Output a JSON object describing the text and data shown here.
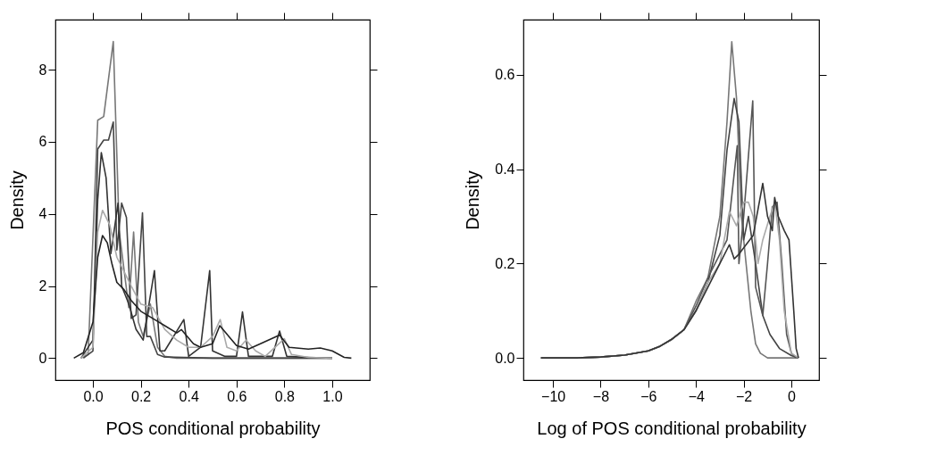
{
  "chart_data": [
    {
      "type": "line",
      "xlabel": "POS conditional probability",
      "ylabel": "Density",
      "xlim": [
        -0.157,
        1.157
      ],
      "ylim": [
        -0.61,
        9.39
      ],
      "xticks": [
        {
          "value": 0,
          "label": "0.0"
        },
        {
          "value": 0.2,
          "label": "0.2"
        },
        {
          "value": 0.4,
          "label": "0.4"
        },
        {
          "value": 0.6,
          "label": "0.6"
        },
        {
          "value": 0.8,
          "label": "0.8"
        },
        {
          "value": 1,
          "label": "1.0"
        }
      ],
      "yticks": [
        0,
        2,
        4,
        6,
        8
      ],
      "grid": false,
      "series": [
        {
          "color": "#777777",
          "x": [
            -0.05,
            -0.02,
            0.02,
            0.045,
            0.085,
            0.11,
            0.15,
            0.17,
            0.19,
            0.21,
            0.24,
            0.27,
            0.3,
            0.35,
            0.4,
            0.5,
            0.6,
            0.7,
            0.8,
            0.9,
            1.0
          ],
          "values": [
            0,
            0.1,
            6.6,
            6.7,
            8.78,
            3.5,
            1.4,
            3.5,
            1.0,
            0.6,
            1.5,
            0.3,
            0.05,
            0,
            0,
            0,
            0,
            0,
            0,
            0,
            0
          ]
        },
        {
          "color": "#444444",
          "x": [
            -0.04,
            0.0,
            0.02,
            0.045,
            0.065,
            0.085,
            0.1,
            0.12,
            0.14,
            0.16,
            0.18,
            0.207,
            0.225,
            0.24,
            0.27,
            0.3,
            0.5,
            0.8,
            1.0
          ],
          "values": [
            0,
            0.2,
            5.8,
            6.05,
            6.05,
            6.55,
            3.0,
            4.3,
            3.9,
            1.1,
            1.2,
            4.03,
            0.6,
            0.6,
            0.1,
            0.03,
            0,
            0,
            0
          ]
        },
        {
          "color": "#333333",
          "x": [
            -0.05,
            0.0,
            0.02,
            0.035,
            0.055,
            0.075,
            0.105,
            0.12,
            0.15,
            0.18,
            0.21,
            0.257,
            0.28,
            0.3,
            0.38,
            0.4,
            0.45,
            0.488,
            0.5,
            0.55,
            0.6,
            0.625,
            0.65,
            0.75,
            0.78,
            0.81,
            0.9,
            1.0
          ],
          "values": [
            0,
            0.5,
            4.4,
            5.7,
            5.0,
            2.9,
            4.3,
            2.0,
            1.5,
            0.8,
            0.5,
            2.43,
            0.2,
            0.2,
            1.07,
            0.05,
            0.3,
            2.43,
            0.2,
            0.05,
            0.05,
            1.28,
            0.05,
            0.05,
            0.75,
            0.05,
            0.02,
            0
          ]
        },
        {
          "color": "#aaaaaa",
          "x": [
            -0.05,
            0.0,
            0.02,
            0.04,
            0.07,
            0.1,
            0.13,
            0.16,
            0.2,
            0.25,
            0.3,
            0.35,
            0.4,
            0.45,
            0.5,
            0.532,
            0.56,
            0.6,
            0.64,
            0.68,
            0.72,
            0.8,
            0.83,
            0.9,
            1.0
          ],
          "values": [
            0,
            0.3,
            3.5,
            4.1,
            3.7,
            2.8,
            2.4,
            2.0,
            1.5,
            1.4,
            0.8,
            0.5,
            0.3,
            0.3,
            0.6,
            1.07,
            0.3,
            0.2,
            0.5,
            0.2,
            0.05,
            0.54,
            0.1,
            0.02,
            0
          ]
        },
        {
          "color": "#222222",
          "x": [
            -0.08,
            -0.04,
            0.0,
            0.02,
            0.04,
            0.06,
            0.08,
            0.1,
            0.13,
            0.16,
            0.2,
            0.25,
            0.3,
            0.35,
            0.37,
            0.42,
            0.45,
            0.5,
            0.53,
            0.6,
            0.65,
            0.7,
            0.78,
            0.82,
            0.9,
            0.95,
            1.0,
            1.05,
            1.08
          ],
          "values": [
            0,
            0.15,
            1.0,
            2.8,
            3.4,
            3.2,
            2.6,
            2.1,
            1.9,
            1.6,
            1.3,
            1.1,
            0.9,
            0.7,
            0.79,
            0.4,
            0.3,
            0.4,
            0.9,
            0.35,
            0.25,
            0.4,
            0.64,
            0.3,
            0.25,
            0.28,
            0.2,
            0.02,
            0
          ]
        }
      ]
    },
    {
      "type": "line",
      "xlabel": "Log of POS conditional probability",
      "ylabel": "Density",
      "xlim": [
        -11.24,
        1.16
      ],
      "ylim": [
        -0.047,
        0.717
      ],
      "xticks": [
        {
          "value": -10,
          "label": "−10"
        },
        {
          "value": -8,
          "label": "−8"
        },
        {
          "value": -6,
          "label": "−6"
        },
        {
          "value": -4,
          "label": "−4"
        },
        {
          "value": -2,
          "label": "−2"
        },
        0
      ],
      "yticks": [
        {
          "value": 0,
          "label": "0.0"
        },
        {
          "value": 0.2,
          "label": "0.2"
        },
        {
          "value": 0.4,
          "label": "0.4"
        },
        {
          "value": 0.6,
          "label": "0.6"
        }
      ],
      "grid": false,
      "series": [
        {
          "color": "#777777",
          "x": [
            -10.5,
            -9,
            -8,
            -7,
            -6,
            -5.5,
            -5,
            -4.5,
            -4,
            -3.5,
            -3,
            -2.7,
            -2.5,
            -2.3,
            -2.1,
            -1.9,
            -1.7,
            -1.5,
            -1.3,
            -1,
            0,
            0.3
          ],
          "values": [
            0,
            0,
            0.002,
            0.006,
            0.015,
            0.025,
            0.04,
            0.06,
            0.12,
            0.17,
            0.3,
            0.5,
            0.67,
            0.55,
            0.3,
            0.2,
            0.1,
            0.03,
            0.01,
            0,
            0,
            0
          ]
        },
        {
          "color": "#444444",
          "x": [
            -10.5,
            -9,
            -8,
            -7,
            -6,
            -5.5,
            -5,
            -4.5,
            -4,
            -3.5,
            -3,
            -2.7,
            -2.4,
            -2.2,
            -2,
            -1.8,
            -1.5,
            -1.2,
            -0.9,
            -0.5,
            0,
            0.3
          ],
          "values": [
            0,
            0,
            0.002,
            0.006,
            0.015,
            0.025,
            0.04,
            0.06,
            0.1,
            0.16,
            0.26,
            0.44,
            0.55,
            0.5,
            0.25,
            0.3,
            0.2,
            0.09,
            0.05,
            0.02,
            0.005,
            0
          ]
        },
        {
          "color": "#555555",
          "x": [
            -10.5,
            -9,
            -8,
            -7,
            -6,
            -5.5,
            -5,
            -4.5,
            -4,
            -3.5,
            -3,
            -2.7,
            -2.27,
            -2.2,
            -2,
            -1.62,
            -1.5,
            -1.2,
            -1,
            -0.8,
            -0.6,
            -0.4,
            -0.2,
            0,
            0.2
          ],
          "values": [
            0,
            0,
            0.002,
            0.006,
            0.015,
            0.025,
            0.04,
            0.06,
            0.11,
            0.17,
            0.22,
            0.25,
            0.45,
            0.2,
            0.3,
            0.545,
            0.15,
            0.09,
            0.2,
            0.32,
            0.33,
            0.2,
            0.05,
            0.01,
            0
          ]
        },
        {
          "color": "#aaaaaa",
          "x": [
            -10.5,
            -9,
            -8,
            -7,
            -6,
            -5.5,
            -5,
            -4.5,
            -4,
            -3.5,
            -3,
            -2.6,
            -2.3,
            -2,
            -1.8,
            -1.6,
            -1.4,
            -1.2,
            -0.9,
            -0.7,
            -0.5,
            -0.3,
            0,
            0.3
          ],
          "values": [
            0,
            0,
            0.002,
            0.006,
            0.015,
            0.025,
            0.04,
            0.06,
            0.1,
            0.16,
            0.2,
            0.31,
            0.28,
            0.33,
            0.33,
            0.3,
            0.2,
            0.25,
            0.3,
            0.33,
            0.25,
            0.1,
            0.01,
            0
          ]
        },
        {
          "color": "#333333",
          "x": [
            -10.5,
            -9,
            -8,
            -7,
            -6,
            -5.5,
            -5,
            -4.5,
            -4,
            -3.5,
            -3,
            -2.6,
            -2.4,
            -2.2,
            -1.9,
            -1.6,
            -1.2,
            -1,
            -0.8,
            -0.7,
            -0.55,
            -0.3,
            -0.1,
            0.1,
            0.2,
            0.3
          ],
          "values": [
            0,
            0,
            0.002,
            0.006,
            0.015,
            0.025,
            0.04,
            0.06,
            0.1,
            0.15,
            0.2,
            0.24,
            0.21,
            0.22,
            0.24,
            0.26,
            0.37,
            0.3,
            0.27,
            0.34,
            0.3,
            0.27,
            0.25,
            0.1,
            0.02,
            0
          ]
        }
      ]
    }
  ]
}
